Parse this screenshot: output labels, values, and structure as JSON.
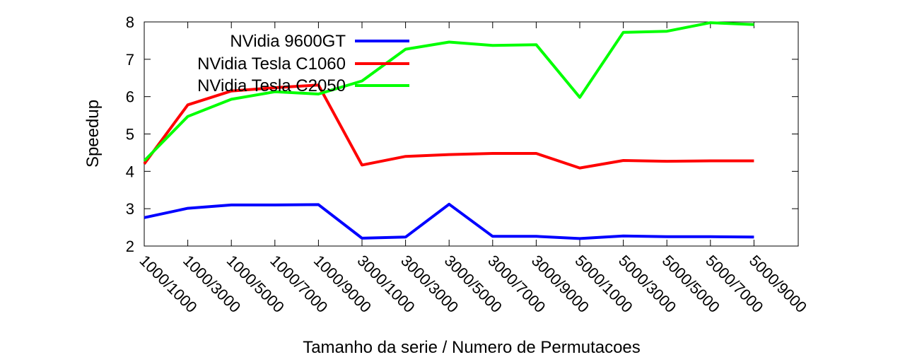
{
  "chart_data": {
    "type": "line",
    "title": "",
    "xlabel": "Tamanho da serie / Numero de Permutacoes",
    "ylabel": "Speedup",
    "ylim": [
      2,
      8
    ],
    "yticks": [
      2,
      3,
      4,
      5,
      6,
      7,
      8
    ],
    "grid": false,
    "legend_position": "top-left",
    "categories": [
      "1000/1000",
      "1000/3000",
      "1000/5000",
      "1000/7000",
      "1000/9000",
      "3000/1000",
      "3000/3000",
      "3000/5000",
      "3000/7000",
      "3000/9000",
      "5000/1000",
      "5000/3000",
      "5000/5000",
      "5000/7000",
      "5000/9000"
    ],
    "series": [
      {
        "name": "NVidia 9600GT",
        "color": "#0000ff",
        "values": [
          2.76,
          3.01,
          3.1,
          3.1,
          3.11,
          2.21,
          2.24,
          3.12,
          2.26,
          2.26,
          2.2,
          2.27,
          2.25,
          2.25,
          2.24
        ]
      },
      {
        "name": "NVidia Tesla C1060",
        "color": "#ff0000",
        "values": [
          4.2,
          5.78,
          6.15,
          6.24,
          6.31,
          4.17,
          4.4,
          4.45,
          4.48,
          4.48,
          4.09,
          4.29,
          4.27,
          4.28,
          4.28
        ]
      },
      {
        "name": "NVidia Tesla C2050",
        "color": "#00ff00",
        "values": [
          4.28,
          5.47,
          5.93,
          6.13,
          6.07,
          6.42,
          7.27,
          7.46,
          7.37,
          7.39,
          5.98,
          7.72,
          7.75,
          7.98,
          7.93
        ]
      }
    ]
  }
}
